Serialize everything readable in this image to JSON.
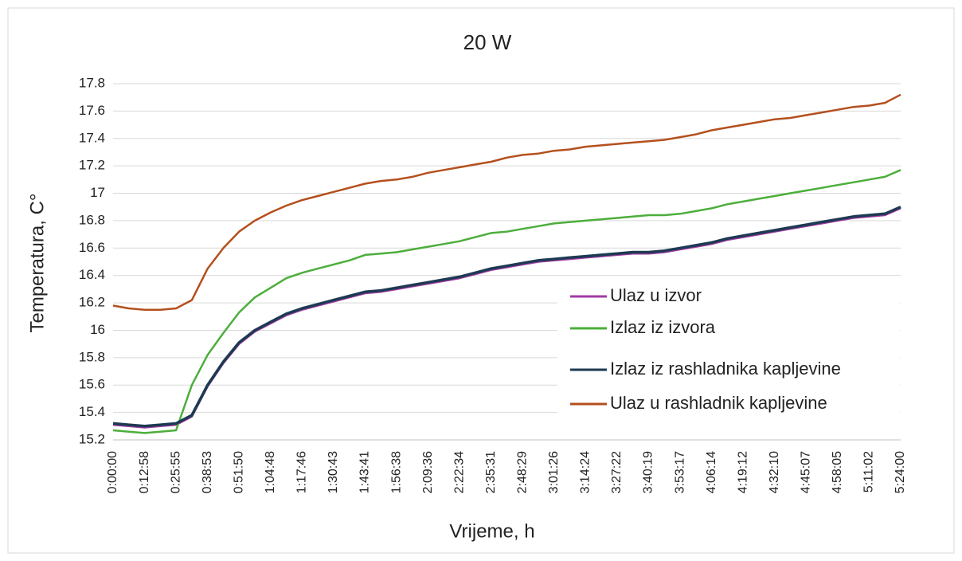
{
  "chart_data": {
    "type": "line",
    "title": "20 W",
    "x_label": "Vrijeme, h",
    "y_label": "Temperatura, C°",
    "categories": [
      "0:00:00",
      null,
      "0:12:58",
      null,
      "0:25:55",
      null,
      "0:38:53",
      null,
      "0:51:50",
      null,
      "1:04:48",
      null,
      "1:17:46",
      null,
      "1:30:43",
      null,
      "1:43:41",
      null,
      "1:56:38",
      null,
      "2:09:36",
      null,
      "2:22:34",
      null,
      "2:35:31",
      null,
      "2:48:29",
      null,
      "3:01:26",
      null,
      "3:14:24",
      null,
      "3:27:22",
      null,
      "3:40:19",
      null,
      "3:53:17",
      null,
      "4:06:14",
      null,
      "4:19:12",
      null,
      "4:32:10",
      null,
      "4:45:07",
      null,
      "4:58:05",
      null,
      "5:11:02",
      null,
      "5:24:00"
    ],
    "series": [
      {
        "name": "Ulaz u izvor",
        "color": "#a33aa6",
        "values": [
          15.31,
          15.3,
          15.29,
          15.3,
          15.31,
          15.37,
          15.59,
          15.76,
          15.9,
          15.99,
          16.05,
          16.11,
          16.15,
          16.18,
          16.21,
          16.24,
          16.27,
          16.28,
          16.3,
          16.32,
          16.34,
          16.36,
          16.38,
          16.41,
          16.44,
          16.46,
          16.48,
          16.5,
          16.51,
          16.52,
          16.53,
          16.54,
          16.55,
          16.56,
          16.56,
          16.57,
          16.59,
          16.61,
          16.63,
          16.66,
          16.68,
          16.7,
          16.72,
          16.74,
          16.76,
          16.78,
          16.8,
          16.82,
          16.83,
          16.84,
          16.89
        ]
      },
      {
        "name": "Izlaz iz izvora",
        "color": "#4cae3b",
        "values": [
          15.27,
          15.26,
          15.25,
          15.26,
          15.27,
          15.6,
          15.82,
          15.98,
          16.13,
          16.24,
          16.31,
          16.38,
          16.42,
          16.45,
          16.48,
          16.51,
          16.55,
          16.56,
          16.57,
          16.59,
          16.61,
          16.63,
          16.65,
          16.68,
          16.71,
          16.72,
          16.74,
          16.76,
          16.78,
          16.79,
          16.8,
          16.81,
          16.82,
          16.83,
          16.84,
          16.84,
          16.85,
          16.87,
          16.89,
          16.92,
          16.94,
          16.96,
          16.98,
          17.0,
          17.02,
          17.04,
          17.06,
          17.08,
          17.1,
          17.12,
          17.17
        ]
      },
      {
        "name": "Izlaz iz rashladnika kapljevine",
        "color": "#1d3a52",
        "values": [
          15.32,
          15.31,
          15.3,
          15.31,
          15.32,
          15.38,
          15.6,
          15.77,
          15.91,
          16.0,
          16.06,
          16.12,
          16.16,
          16.19,
          16.22,
          16.25,
          16.28,
          16.29,
          16.31,
          16.33,
          16.35,
          16.37,
          16.39,
          16.42,
          16.45,
          16.47,
          16.49,
          16.51,
          16.52,
          16.53,
          16.54,
          16.55,
          16.56,
          16.57,
          16.57,
          16.58,
          16.6,
          16.62,
          16.64,
          16.67,
          16.69,
          16.71,
          16.73,
          16.75,
          16.77,
          16.79,
          16.81,
          16.83,
          16.84,
          16.85,
          16.9
        ]
      },
      {
        "name": "Ulaz u rashladnik kapljevine",
        "color": "#b4501e",
        "values": [
          16.18,
          16.16,
          16.15,
          16.15,
          16.16,
          16.22,
          16.45,
          16.6,
          16.72,
          16.8,
          16.86,
          16.91,
          16.95,
          16.98,
          17.01,
          17.04,
          17.07,
          17.09,
          17.1,
          17.12,
          17.15,
          17.17,
          17.19,
          17.21,
          17.23,
          17.26,
          17.28,
          17.29,
          17.31,
          17.32,
          17.34,
          17.35,
          17.36,
          17.37,
          17.38,
          17.39,
          17.41,
          17.43,
          17.46,
          17.48,
          17.5,
          17.52,
          17.54,
          17.55,
          17.57,
          17.59,
          17.61,
          17.63,
          17.64,
          17.66,
          17.72
        ]
      }
    ],
    "ylim": [
      15.2,
      17.8
    ],
    "yticks": [
      15.2,
      15.4,
      15.6,
      15.8,
      16,
      16.2,
      16.4,
      16.6,
      16.8,
      17,
      17.2,
      17.4,
      17.6,
      17.8
    ],
    "grid": true,
    "legend": "right"
  }
}
